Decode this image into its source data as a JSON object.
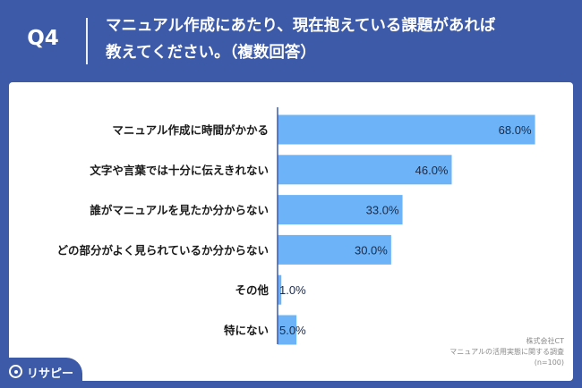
{
  "header": {
    "q_label": "Q4",
    "question_line1": "マニュアル作成にあたり、現在抱えている課題があれば",
    "question_line2": "教えてください。（複数回答）"
  },
  "colors": {
    "background": "#3d5aa8",
    "bar": "#6cb4f7",
    "axis": "#3d5aa8",
    "text": "#1a1a1a"
  },
  "chart_data": {
    "type": "bar",
    "orientation": "horizontal",
    "categories": [
      "マニュアル作成に時間がかかる",
      "文字や言葉では十分に伝えきれない",
      "誰がマニュアルを見たか分からない",
      "どの部分がよく見られているか分からない",
      "その他",
      "特にない"
    ],
    "values": [
      68.0,
      46.0,
      33.0,
      30.0,
      1.0,
      5.0
    ],
    "value_labels": [
      "68.0%",
      "46.0%",
      "33.0%",
      "30.0%",
      "1.0%",
      "5.0%"
    ],
    "xlim": [
      0,
      70
    ],
    "grid": false
  },
  "footnote": {
    "company": "株式会社CT",
    "survey": "マニュアルの活用実態に関する調査",
    "sample": "(n=100)"
  },
  "logo": {
    "text": "リサピー",
    "icon": "risapi-logo-icon"
  }
}
